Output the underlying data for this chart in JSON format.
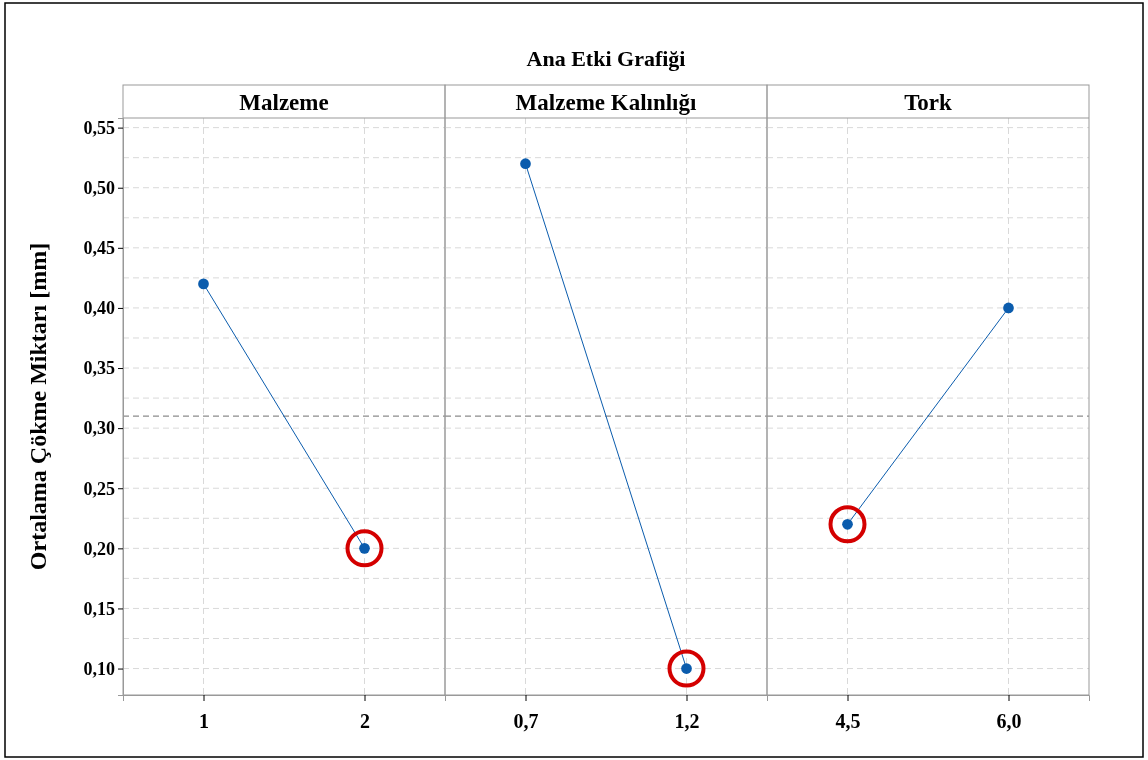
{
  "chart_data": [
    {
      "type": "line",
      "xlabel": "Malzeme",
      "ylabel": "Ortalama Çökme Miktarı [mm]",
      "categories": [
        "1",
        "2"
      ],
      "values": [
        0.42,
        0.2
      ],
      "color": "#0b5cad",
      "marker": "circle",
      "ylim": [
        0.078,
        0.558
      ],
      "yticks": [
        {
          "value": 0.125,
          "label": null
        },
        {
          "value": 0.1,
          "label": "0,10"
        },
        {
          "value": 0.15,
          "label": "0,15"
        },
        {
          "value": 0.175,
          "label": null
        },
        {
          "value": 0.2,
          "label": "0,20"
        },
        {
          "value": 0.225,
          "label": null
        },
        {
          "value": 0.25,
          "label": "0,25"
        },
        {
          "value": 0.275,
          "label": null
        },
        {
          "value": 0.3,
          "label": "0,30"
        },
        {
          "value": 0.325,
          "label": null
        },
        {
          "value": 0.35,
          "label": "0,35"
        },
        {
          "value": 0.375,
          "label": null
        },
        {
          "value": 0.4,
          "label": "0,40"
        },
        {
          "value": 0.425,
          "label": null
        },
        {
          "value": 0.45,
          "label": "0,45"
        },
        {
          "value": 0.475,
          "label": null
        },
        {
          "value": 0.5,
          "label": "0,50"
        },
        {
          "value": 0.525,
          "label": null
        },
        {
          "value": 0.55,
          "label": "0,55"
        }
      ],
      "grid": true,
      "ref_lines": [
        {
          "axis": "y",
          "value": 0.31,
          "color": "#8c8c8c",
          "line_style": "dashed"
        }
      ]
    },
    {
      "type": "line",
      "title": "Ana Etki Grafiği",
      "xlabel": "Malzeme Kalınlığı",
      "categories": [
        "0,7",
        "1,2"
      ],
      "values": [
        0.52,
        0.1
      ],
      "color": "#0b5cad",
      "marker": "circle",
      "ylim": [
        0.078,
        0.558
      ],
      "tick_labels": "x",
      "grid": true,
      "ref_lines": [
        {
          "axis": "y",
          "value": 0.31,
          "color": "#8c8c8c",
          "line_style": "dashed"
        }
      ]
    },
    {
      "type": "line",
      "xlabel": "Tork",
      "categories": [
        "4,5",
        "6,0"
      ],
      "values": [
        0.22,
        0.4
      ],
      "color": "#0b5cad",
      "marker": "circle",
      "ylim": [
        0.078,
        0.558
      ],
      "tick_labels": "x",
      "grid": true,
      "ref_lines": [
        {
          "axis": "y",
          "value": 0.31,
          "color": "#8c8c8c",
          "line_style": "dashed"
        }
      ]
    }
  ]
}
